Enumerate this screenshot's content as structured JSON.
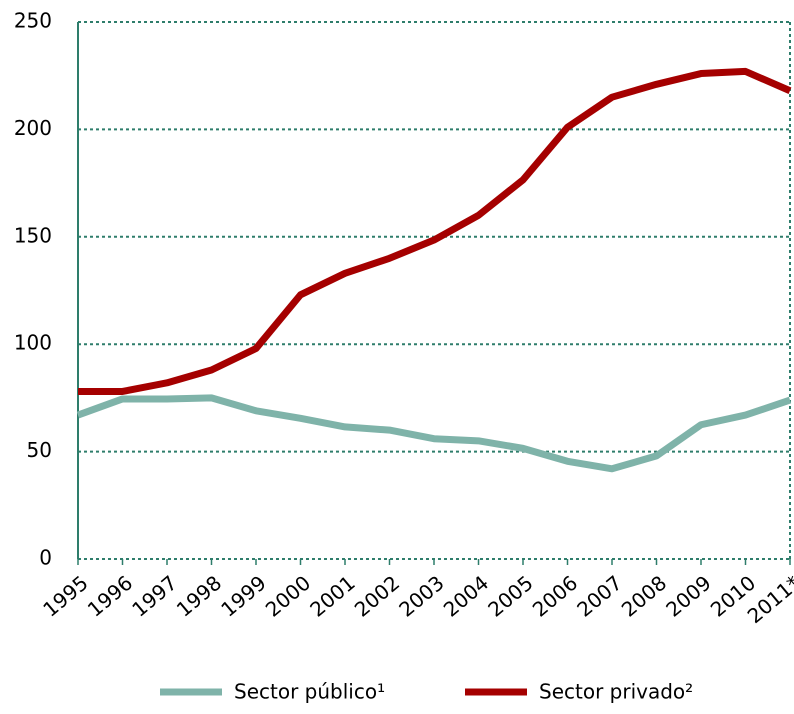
{
  "chart_data": {
    "type": "line",
    "categories": [
      "1995",
      "1996",
      "1997",
      "1998",
      "1999",
      "2000",
      "2001",
      "2002",
      "2003",
      "2004",
      "2005",
      "2006",
      "2007",
      "2008",
      "2009",
      "2010",
      "2011*"
    ],
    "series": [
      {
        "name": "Sector público¹",
        "color": "#7fb3a9",
        "values": [
          67,
          74.5,
          74.5,
          75,
          69,
          65.5,
          61.5,
          60,
          56,
          55,
          51.5,
          45.5,
          42,
          48,
          62.5,
          67,
          74
        ]
      },
      {
        "name": "Sector privado²",
        "color": "#a50000",
        "values": [
          78,
          78,
          82,
          88,
          98,
          123,
          133,
          140,
          148.5,
          160,
          176.5,
          201,
          215,
          221,
          226,
          227,
          218
        ]
      }
    ],
    "ylim": [
      0,
      250
    ],
    "yticks": [
      0,
      50,
      100,
      150,
      200,
      250
    ],
    "grid": true,
    "legend": "bottom"
  }
}
